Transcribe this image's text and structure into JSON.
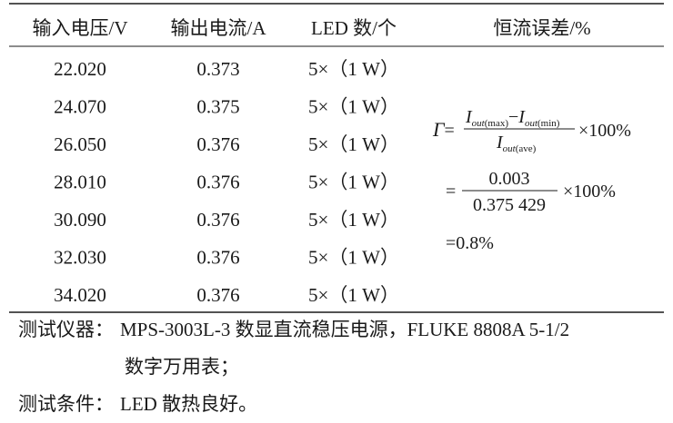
{
  "table": {
    "header": [
      "输入电压/V",
      "输出电流/A",
      "LED 数/个",
      "恒流误差/%"
    ],
    "rows": [
      [
        "22.020",
        "0.373",
        "5×（1 W）"
      ],
      [
        "24.070",
        "0.375",
        "5×（1 W）"
      ],
      [
        "26.050",
        "0.376",
        "5×（1 W）"
      ],
      [
        "28.010",
        "0.376",
        "5×（1 W）"
      ],
      [
        "30.090",
        "0.376",
        "5×（1 W）"
      ],
      [
        "32.030",
        "0.376",
        "5×（1 W）"
      ],
      [
        "34.020",
        "0.376",
        "5×（1 W）"
      ]
    ]
  },
  "formula": {
    "symbol": "Γ",
    "equals": "=",
    "numerator": {
      "a": "I",
      "a_sub": "out",
      "a_qual": "(max)",
      "minus": "−",
      "b": "I",
      "b_sub": "out",
      "b_qual": "(min)"
    },
    "denominator": {
      "v": "I",
      "sub": "out",
      "qual": "(ave)"
    },
    "times": "×100%",
    "step2": {
      "equals": "=",
      "numerator": "0.003",
      "denominator": "0.375 429",
      "times": "×100%"
    },
    "result": "=0.8%"
  },
  "notes": [
    {
      "label": "测试仪器：",
      "lines": [
        "MPS-3003L-3 数显直流稳压电源，FLUKE 8808A 5-1/2",
        "数字万用表；"
      ]
    },
    {
      "label": "测试条件：",
      "lines": [
        "LED 散热良好。"
      ]
    }
  ]
}
